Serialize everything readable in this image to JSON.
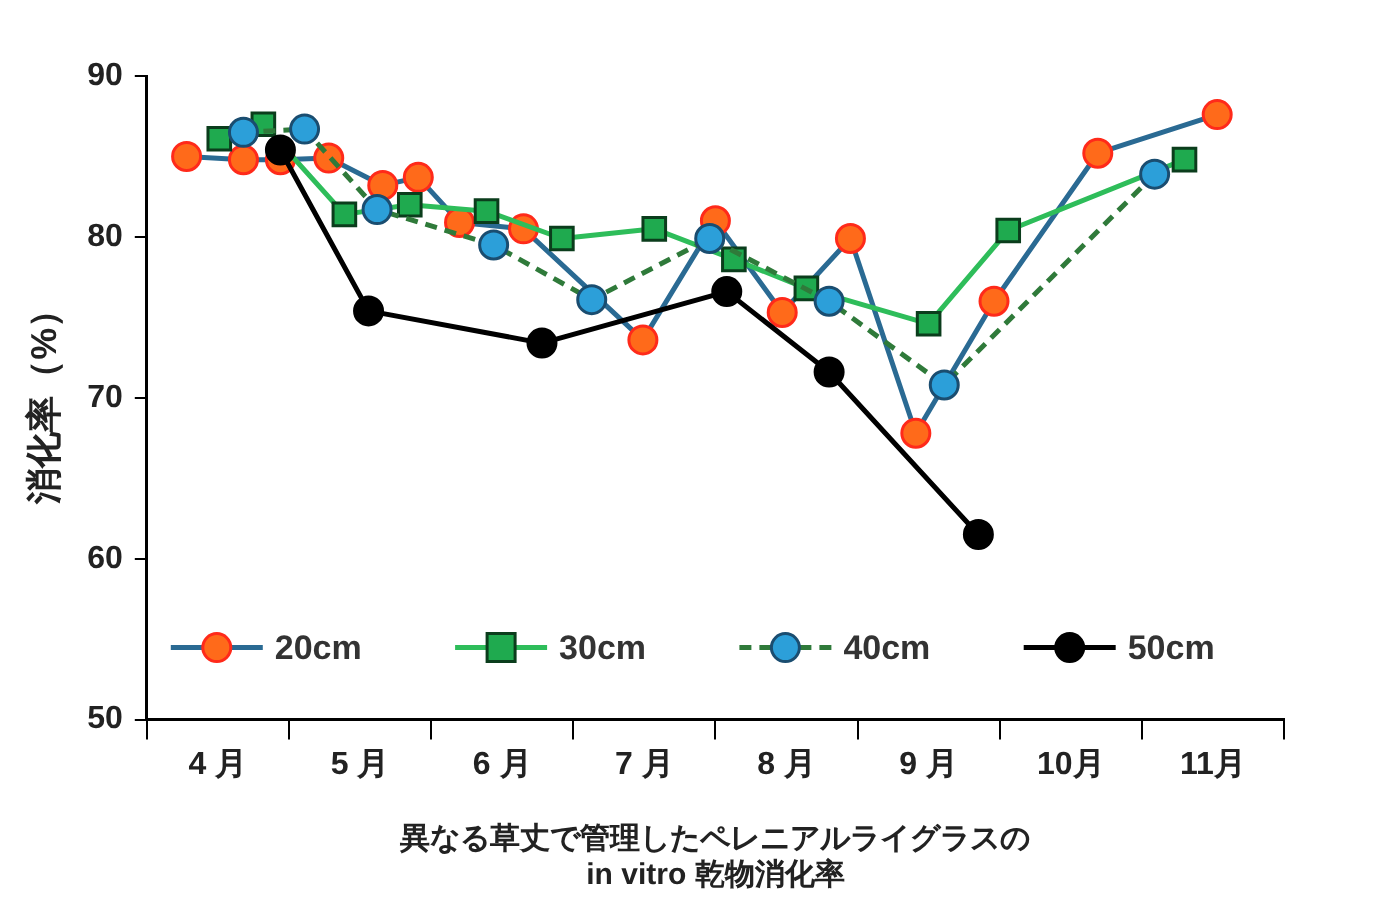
{
  "chart_data": {
    "type": "line",
    "xlabel": "異なる草丈で管理したペレニアルライグラスの\nin vitro 乾物消化率",
    "ylabel": "消化率（%）",
    "xlim": [
      4,
      12
    ],
    "xticks": [
      {
        "value": 4,
        "label": null
      },
      {
        "value": 4.5,
        "label": "4 月"
      },
      {
        "value": 5,
        "label": null
      },
      {
        "value": 5.5,
        "label": "5 月"
      },
      {
        "value": 6,
        "label": null
      },
      {
        "value": 6.5,
        "label": "6 月"
      },
      {
        "value": 7,
        "label": null
      },
      {
        "value": 7.5,
        "label": "7 月"
      },
      {
        "value": 8,
        "label": null
      },
      {
        "value": 8.5,
        "label": "8 月"
      },
      {
        "value": 9,
        "label": null
      },
      {
        "value": 9.5,
        "label": "9 月"
      },
      {
        "value": 10,
        "label": null
      },
      {
        "value": 10.5,
        "label": "10月"
      },
      {
        "value": 11,
        "label": null
      },
      {
        "value": 11.5,
        "label": "11月"
      },
      {
        "value": 12,
        "label": null
      }
    ],
    "ylim": [
      50,
      90
    ],
    "yticks": [
      50,
      60,
      70,
      80,
      90
    ],
    "grid": false,
    "legend": "bottom",
    "series": [
      {
        "name": "20cm",
        "color": "#ff6a1a",
        "marker": "circle",
        "line_style": "solid",
        "x": [
          4.28,
          4.68,
          4.94,
          5.28,
          5.66,
          5.91,
          6.2,
          6.65,
          7.49,
          8.0,
          8.47,
          8.95,
          9.41,
          9.96,
          10.69,
          11.53
        ],
        "values": [
          85.0,
          84.8,
          84.8,
          84.9,
          83.2,
          83.7,
          80.9,
          80.5,
          73.6,
          81.0,
          75.3,
          79.9,
          67.8,
          76.0,
          85.2,
          87.6
        ]
      },
      {
        "name": "30cm",
        "color": "#1faa4f",
        "marker": "square",
        "line_style": "solid",
        "x": [
          4.51,
          4.82,
          5.39,
          5.85,
          6.39,
          6.92,
          7.57,
          8.13,
          8.64,
          9.5,
          10.06,
          11.3
        ],
        "values": [
          86.1,
          87.0,
          81.4,
          82.0,
          81.6,
          79.9,
          80.5,
          78.6,
          76.8,
          74.6,
          80.4,
          84.8
        ]
      },
      {
        "name": "40cm",
        "color": "#2c9fd9",
        "marker": "circle",
        "line_style": "dashed",
        "x": [
          4.68,
          5.11,
          5.62,
          6.44,
          7.13,
          7.96,
          8.8,
          9.61,
          11.09
        ],
        "values": [
          86.5,
          86.7,
          81.7,
          79.5,
          76.1,
          79.9,
          76.0,
          70.8,
          83.9
        ]
      },
      {
        "name": "50cm",
        "color": "#000000",
        "marker": "circle",
        "line_style": "solid",
        "x": [
          4.94,
          5.56,
          6.78,
          8.08,
          8.8,
          9.85
        ],
        "values": [
          85.4,
          75.4,
          73.4,
          76.6,
          71.6,
          61.5
        ]
      }
    ]
  }
}
